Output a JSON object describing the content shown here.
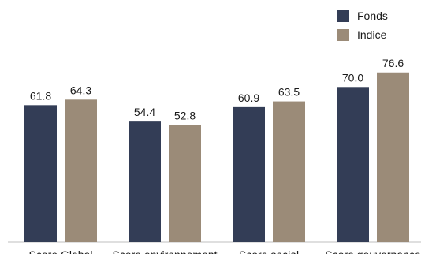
{
  "chart_data": {
    "type": "bar",
    "categories": [
      "Score Global",
      "Score environnement",
      "Score social",
      "Score gouvernance"
    ],
    "series": [
      {
        "name": "Fonds",
        "values": [
          61.8,
          54.4,
          60.9,
          70.0
        ],
        "labels": [
          "61.8",
          "54.4",
          "60.9",
          "70.0"
        ],
        "color": "#333d56"
      },
      {
        "name": "Indice",
        "values": [
          64.3,
          52.8,
          63.5,
          76.6
        ],
        "labels": [
          "64.3",
          "52.8",
          "63.5",
          "76.6"
        ],
        "color": "#9b8b78"
      }
    ],
    "title": "",
    "xlabel": "",
    "ylabel": "",
    "ylim": [
      0,
      100
    ],
    "grid": false,
    "legend_position": "top-right"
  }
}
